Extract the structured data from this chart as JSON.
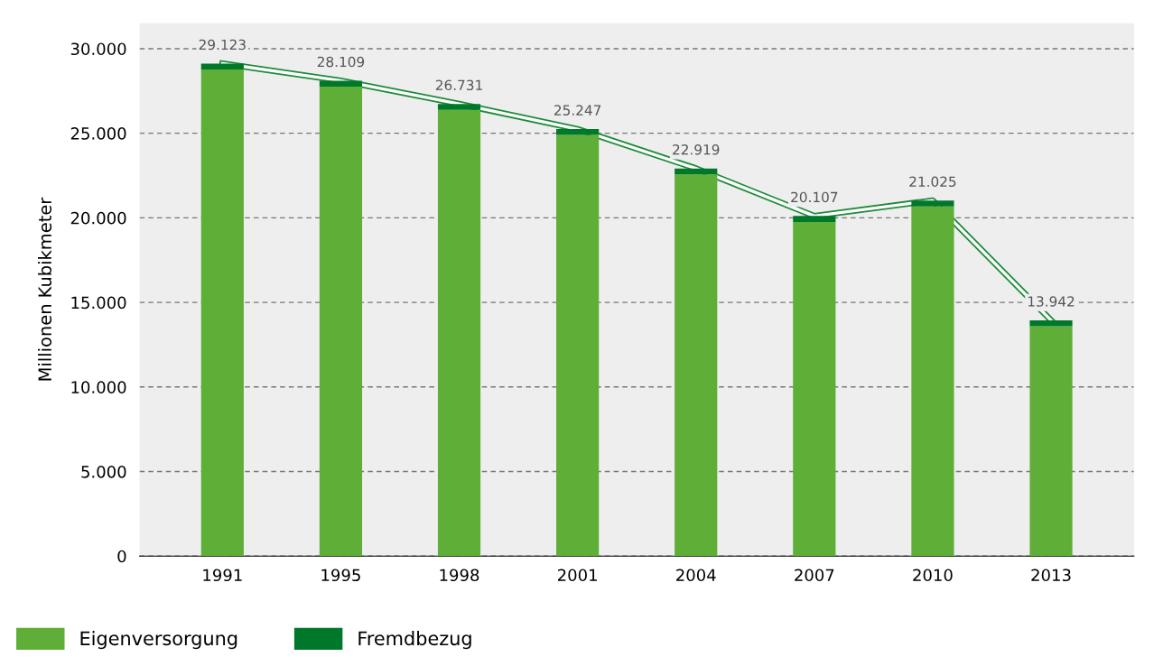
{
  "chart_data": {
    "type": "bar",
    "stacked": true,
    "ylabel": "Millionen Kubikmeter",
    "categories": [
      "1991",
      "1995",
      "1998",
      "2001",
      "2004",
      "2007",
      "2010",
      "2013"
    ],
    "series": [
      {
        "name": "Eigenversorgung",
        "color": "#5fae37",
        "values": [
          28773,
          27759,
          26381,
          24897,
          22569,
          19757,
          20675,
          13592
        ]
      },
      {
        "name": "Fremdbezug",
        "color": "#00782a",
        "values": [
          350,
          350,
          350,
          350,
          350,
          350,
          350,
          350
        ]
      },
      {
        "type": "line",
        "color": "#1e8c3a",
        "values": [
          29123,
          28109,
          26731,
          25247,
          22919,
          20107,
          21025,
          13942
        ]
      }
    ],
    "totals": [
      "29.123",
      "28.109",
      "26.731",
      "25.247",
      "22.919",
      "20.107",
      "21.025",
      "13.942"
    ],
    "ylim": [
      0,
      31500
    ],
    "yticks": [
      {
        "value": 0,
        "label": "0"
      },
      {
        "value": 5000,
        "label": "5.000"
      },
      {
        "value": 10000,
        "label": "10.000"
      },
      {
        "value": 15000,
        "label": "15.000"
      },
      {
        "value": 20000,
        "label": "20.000"
      },
      {
        "value": 25000,
        "label": "25.000"
      },
      {
        "value": 30000,
        "label": "30.000"
      }
    ],
    "grid": "y",
    "legend": "bottom left"
  }
}
